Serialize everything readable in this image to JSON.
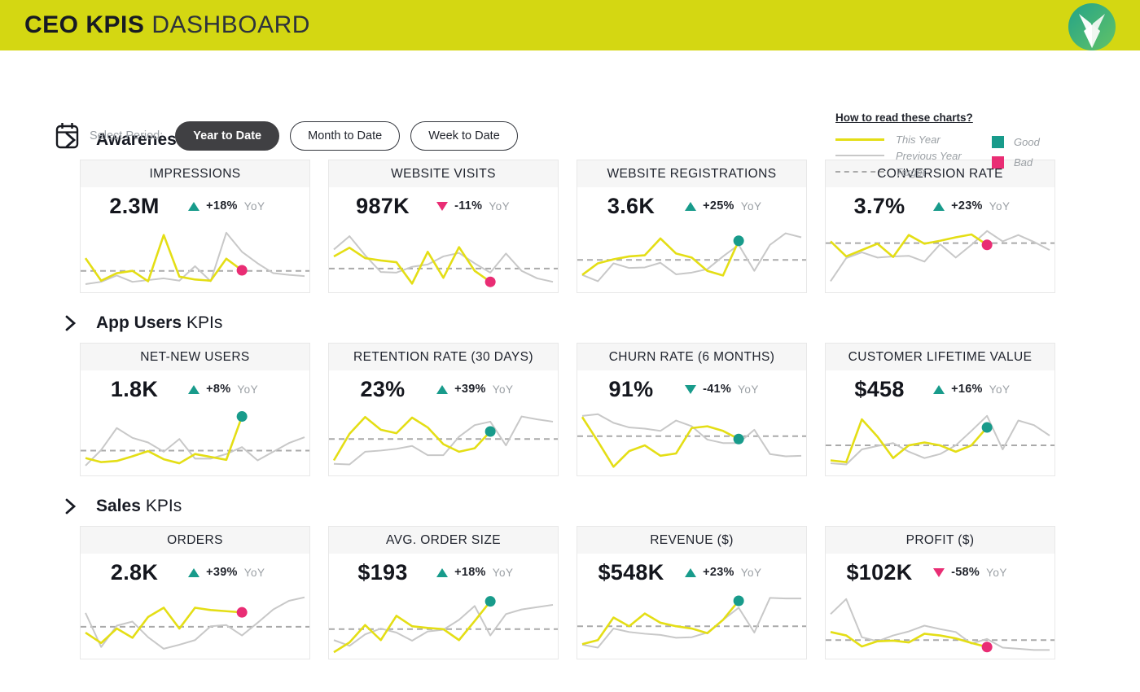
{
  "header": {
    "title_primary": "CEO KPIS",
    "title_secondary": "DASHBOARD",
    "logo_icon": "fox-logo"
  },
  "controls": {
    "calendar_icon": "calendar-icon",
    "label": "Select Period:",
    "periods": [
      {
        "label": "Year to Date",
        "active": true
      },
      {
        "label": "Month to Date",
        "active": false
      },
      {
        "label": "Week to Date",
        "active": false
      }
    ]
  },
  "legend": {
    "link": "How to read these charts?",
    "lines": [
      {
        "label": "This Year",
        "style": "solid-yellow"
      },
      {
        "label": "Previous Year",
        "style": "solid-gray"
      },
      {
        "label": "Target",
        "style": "dashed-gray"
      }
    ],
    "markers": [
      {
        "label": "Good",
        "color": "#189b8b"
      },
      {
        "label": "Bad",
        "color": "#e92d74"
      }
    ]
  },
  "colors": {
    "banner": "#d4d712",
    "this_year": "#e4de15",
    "previous_year": "#c8c8c8",
    "target": "#aaaaaa",
    "good": "#189b8b",
    "bad": "#e92d74",
    "dark_text": "#171a23",
    "gray_text": "#9ba0a5"
  },
  "sections": [
    {
      "title_bold": "Awareness",
      "title_rest": "KPIs",
      "card_indexes": [
        0,
        1,
        2,
        3
      ]
    },
    {
      "title_bold": "App Users",
      "title_rest": "KPIs",
      "card_indexes": [
        4,
        5,
        6,
        7
      ]
    },
    {
      "title_bold": "Sales",
      "title_rest": "KPIs",
      "card_indexes": [
        8,
        9,
        10,
        11
      ]
    }
  ],
  "chart_data": [
    {
      "type": "line",
      "title": "IMPRESSIONS",
      "kpi_value": "2.3M",
      "yoy_change": "+18%",
      "yoy_label": "YoY",
      "trend": "up",
      "trend_sentiment": "good",
      "end_dot": "bad",
      "target": 30,
      "ylim": [
        0,
        100
      ],
      "grid": false,
      "series": [
        {
          "name": "This Year",
          "values": [
            52,
            13,
            26,
            30,
            12,
            92,
            20,
            15,
            13,
            51,
            31
          ]
        },
        {
          "name": "Previous Year",
          "values": [
            7,
            11,
            22,
            11,
            14,
            17,
            13,
            38,
            12,
            96,
            63,
            43,
            26,
            23,
            21
          ]
        }
      ]
    },
    {
      "type": "line",
      "title": "WEBSITE VISITS",
      "kpi_value": "987K",
      "yoy_change": "-11%",
      "yoy_label": "YoY",
      "trend": "down",
      "trend_sentiment": "bad",
      "end_dot": "bad",
      "target": 34,
      "ylim": [
        0,
        100
      ],
      "grid": false,
      "series": [
        {
          "name": "This Year",
          "values": [
            55,
            70,
            52,
            48,
            45,
            8,
            63,
            18,
            71,
            30,
            11
          ]
        },
        {
          "name": "Previous Year",
          "values": [
            67,
            90,
            57,
            28,
            27,
            37,
            41,
            55,
            61,
            43,
            27,
            60,
            30,
            17,
            11
          ]
        }
      ]
    },
    {
      "type": "line",
      "title": "WEBSITE REGISTRATIONS",
      "kpi_value": "3.6K",
      "yoy_change": "+25%",
      "yoy_label": "YoY",
      "trend": "up",
      "trend_sentiment": "good",
      "end_dot": "good",
      "target": 49,
      "ylim": [
        0,
        100
      ],
      "grid": false,
      "series": [
        {
          "name": "This Year",
          "values": [
            23,
            43,
            50,
            55,
            57,
            86,
            60,
            53,
            30,
            22,
            82
          ]
        },
        {
          "name": "Previous Year",
          "values": [
            23,
            12,
            43,
            35,
            36,
            44,
            24,
            27,
            33,
            55,
            75,
            30,
            75,
            95,
            88
          ]
        }
      ]
    },
    {
      "type": "line",
      "title": "CONVERSION RATE",
      "kpi_value": "3.7%",
      "yoy_change": "+23%",
      "yoy_label": "YoY",
      "trend": "up",
      "trend_sentiment": "good",
      "end_dot": "bad",
      "target": 78,
      "ylim": [
        0,
        100
      ],
      "grid": false,
      "series": [
        {
          "name": "This Year",
          "values": [
            81,
            55,
            66,
            77,
            54,
            92,
            77,
            82,
            88,
            93,
            75
          ]
        },
        {
          "name": "Previous Year",
          "values": [
            12,
            52,
            62,
            53,
            55,
            56,
            46,
            76,
            53,
            75,
            99,
            81,
            92,
            80,
            66
          ]
        }
      ]
    },
    {
      "type": "line",
      "title": "NET-NEW USERS",
      "kpi_value": "1.8K",
      "yoy_change": "+8%",
      "yoy_label": "YoY",
      "trend": "up",
      "trend_sentiment": "good",
      "end_dot": "good",
      "target": 36,
      "ylim": [
        0,
        100
      ],
      "grid": false,
      "series": [
        {
          "name": "This Year",
          "values": [
            23,
            16,
            18,
            26,
            35,
            21,
            14,
            30,
            25,
            20,
            95
          ]
        },
        {
          "name": "Previous Year",
          "values": [
            10,
            37,
            75,
            58,
            50,
            34,
            56,
            22,
            22,
            30,
            42,
            19,
            34,
            49,
            59
          ]
        }
      ]
    },
    {
      "type": "line",
      "title": "RETENTION RATE (30 DAYS)",
      "kpi_value": "23%",
      "yoy_change": "+39%",
      "yoy_label": "YoY",
      "trend": "up",
      "trend_sentiment": "good",
      "end_dot": "good",
      "target": 56,
      "ylim": [
        0,
        100
      ],
      "grid": false,
      "series": [
        {
          "name": "This Year",
          "values": [
            19,
            65,
            94,
            72,
            66,
            93,
            76,
            47,
            34,
            40,
            69
          ]
        },
        {
          "name": "Previous Year",
          "values": [
            13,
            12,
            34,
            36,
            39,
            44,
            28,
            28,
            60,
            80,
            86,
            45,
            95,
            90,
            86
          ]
        }
      ]
    },
    {
      "type": "line",
      "title": "CHURN RATE (6 MONTHS)",
      "kpi_value": "91%",
      "yoy_change": "-41%",
      "yoy_label": "YoY",
      "trend": "down",
      "trend_sentiment": "good",
      "end_dot": "good",
      "target": 61,
      "ylim": [
        0,
        100
      ],
      "grid": false,
      "series": [
        {
          "name": "This Year",
          "values": [
            94,
            52,
            8,
            35,
            45,
            27,
            31,
            75,
            78,
            70,
            56
          ]
        },
        {
          "name": "Previous Year",
          "values": [
            96,
            99,
            84,
            76,
            74,
            70,
            88,
            78,
            55,
            49,
            49,
            72,
            30,
            26,
            27
          ]
        }
      ]
    },
    {
      "type": "line",
      "title": "CUSTOMER LIFETIME VALUE",
      "kpi_value": "$458",
      "yoy_change": "+16%",
      "yoy_label": "YoY",
      "trend": "up",
      "trend_sentiment": "good",
      "end_dot": "good",
      "target": 45,
      "ylim": [
        0,
        100
      ],
      "grid": false,
      "series": [
        {
          "name": "This Year",
          "values": [
            19,
            16,
            90,
            60,
            23,
            45,
            50,
            45,
            34,
            45,
            76
          ]
        },
        {
          "name": "Previous Year",
          "values": [
            14,
            12,
            38,
            44,
            49,
            34,
            23,
            30,
            45,
            70,
            96,
            38,
            88,
            80,
            62
          ]
        }
      ]
    },
    {
      "type": "line",
      "title": "ORDERS",
      "kpi_value": "2.8K",
      "yoy_change": "+39%",
      "yoy_label": "YoY",
      "trend": "up",
      "trend_sentiment": "good",
      "end_dot": "bad",
      "target": 48,
      "ylim": [
        0,
        100
      ],
      "grid": false,
      "series": [
        {
          "name": "This Year",
          "values": [
            38,
            20,
            45,
            29,
            65,
            81,
            45,
            81,
            77,
            75,
            73
          ]
        },
        {
          "name": "Previous Year",
          "values": [
            72,
            13,
            50,
            57,
            30,
            10,
            17,
            25,
            49,
            51,
            33,
            55,
            78,
            93,
            99
          ]
        }
      ]
    },
    {
      "type": "line",
      "title": "AVG. ORDER SIZE",
      "kpi_value": "$193",
      "yoy_change": "+18%",
      "yoy_label": "YoY",
      "trend": "up",
      "trend_sentiment": "good",
      "end_dot": "good",
      "target": 44,
      "ylim": [
        0,
        100
      ],
      "grid": false,
      "series": [
        {
          "name": "This Year",
          "values": [
            4,
            21,
            51,
            25,
            67,
            49,
            46,
            44,
            25,
            58,
            92
          ]
        },
        {
          "name": "Previous Year",
          "values": [
            25,
            15,
            35,
            45,
            38,
            24,
            40,
            43,
            60,
            84,
            33,
            70,
            78,
            82,
            86
          ]
        }
      ]
    },
    {
      "type": "line",
      "title": "REVENUE ($)",
      "kpi_value": "$548K",
      "yoy_change": "+23%",
      "yoy_label": "YoY",
      "trend": "up",
      "trend_sentiment": "good",
      "end_dot": "good",
      "target": 49,
      "ylim": [
        0,
        100
      ],
      "grid": false,
      "series": [
        {
          "name": "This Year",
          "values": [
            18,
            25,
            64,
            49,
            71,
            55,
            49,
            45,
            37,
            60,
            93
          ]
        },
        {
          "name": "Previous Year",
          "values": [
            17,
            12,
            45,
            39,
            36,
            34,
            29,
            30,
            38,
            60,
            81,
            38,
            98,
            97,
            97
          ]
        }
      ]
    },
    {
      "type": "line",
      "title": "PROFIT ($)",
      "kpi_value": "$102K",
      "yoy_change": "-58%",
      "yoy_label": "YoY",
      "trend": "down",
      "trend_sentiment": "bad",
      "end_dot": "bad",
      "target": 25,
      "ylim": [
        0,
        100
      ],
      "grid": false,
      "series": [
        {
          "name": "This Year",
          "values": [
            39,
            33,
            14,
            23,
            24,
            21,
            36,
            33,
            28,
            20,
            13
          ]
        },
        {
          "name": "Previous Year",
          "values": [
            70,
            96,
            30,
            23,
            33,
            40,
            50,
            44,
            39,
            19,
            27,
            12,
            10,
            8,
            8
          ]
        }
      ]
    }
  ]
}
